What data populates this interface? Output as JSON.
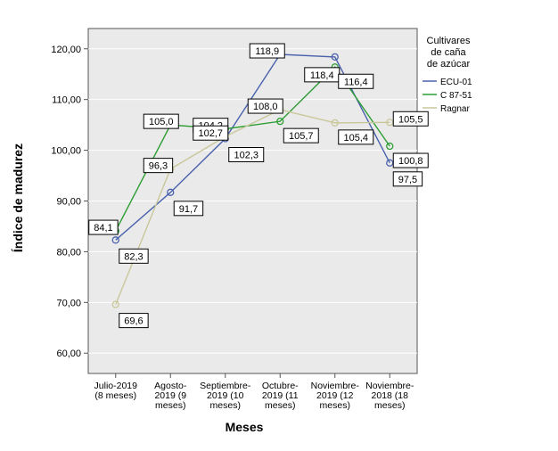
{
  "chart_data": {
    "type": "line",
    "ylabel": "Índice de madurez",
    "xlabel": "Meses",
    "ylim": [
      56,
      124
    ],
    "yticks": [
      60,
      70,
      80,
      90,
      100,
      110,
      120
    ],
    "ytick_labels": [
      "60,00",
      "70,00",
      "80,00",
      "90,00",
      "100,00",
      "110,00",
      "120,00"
    ],
    "categories": [
      [
        "Julio-2019",
        "(8 meses)"
      ],
      [
        "Agosto-",
        "2019 (9",
        "meses)"
      ],
      [
        "Septiembre-",
        "2019 (10",
        "meses)"
      ],
      [
        "Octubre-",
        "2019 (11",
        "meses)"
      ],
      [
        "Noviembre-",
        "2019 (12",
        "meses)"
      ],
      [
        "Noviembre-",
        "2018 (18",
        "meses)"
      ]
    ],
    "legend": {
      "title": [
        "Cultivares",
        "de caña",
        "de azúcar"
      ],
      "position": "right"
    },
    "grid": "horizontal",
    "background": "#eaeaea",
    "series": [
      {
        "name": "ECU-01",
        "color": "#4a62ad",
        "values": [
          82.3,
          91.7,
          102.3,
          118.9,
          118.4,
          97.5
        ],
        "labels": [
          "82,3",
          "91,7",
          "102,3",
          "118,9",
          "118,4",
          "97,5"
        ]
      },
      {
        "name": "C 87-51",
        "color": "#2e9e34",
        "values": [
          84.1,
          105.0,
          104.2,
          105.7,
          116.4,
          100.8
        ],
        "labels": [
          "84,1",
          "105,0",
          "104,2",
          "105,7",
          "116,4",
          "100,8"
        ]
      },
      {
        "name": "Ragnar",
        "color": "#c9c79a",
        "values": [
          69.6,
          96.3,
          102.7,
          108.0,
          105.4,
          105.5
        ],
        "labels": [
          "69,6",
          "96,3",
          "102,7",
          "108,0",
          "105,4",
          "105,5"
        ]
      }
    ]
  }
}
